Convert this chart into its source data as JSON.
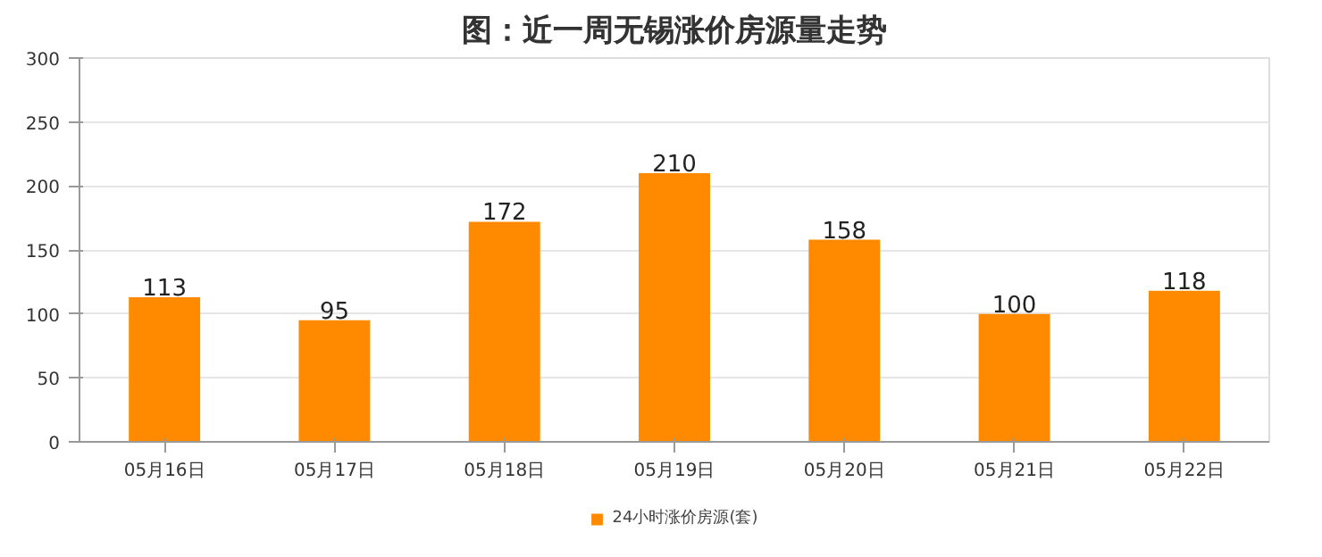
{
  "chart_data": {
    "type": "bar",
    "title": "图：近一周无锡涨价房源量走势",
    "categories": [
      "05月16日",
      "05月17日",
      "05月18日",
      "05月19日",
      "05月20日",
      "05月21日",
      "05月22日"
    ],
    "series": [
      {
        "name": "24小时涨价房源(套)",
        "color": "#ff8a00",
        "values": [
          113,
          95,
          172,
          210,
          158,
          100,
          118
        ]
      }
    ],
    "ylim": [
      0,
      300
    ],
    "yticks": [
      0,
      50,
      100,
      150,
      200,
      250,
      300
    ],
    "grid": "y",
    "legend": "bottom",
    "data_labels": true
  }
}
